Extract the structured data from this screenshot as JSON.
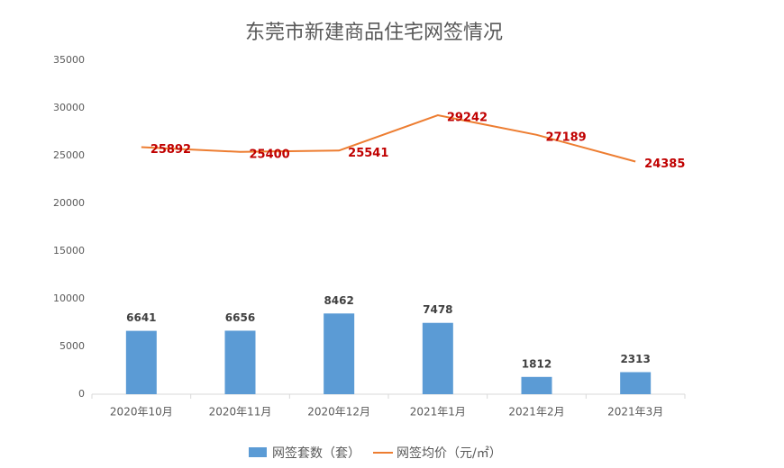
{
  "chart_data": {
    "type": "combo",
    "title": "东莞市新建商品住宅网签情况",
    "categories": [
      "2020年10月",
      "2020年11月",
      "2020年12月",
      "2021年1月",
      "2021年2月",
      "2021年3月"
    ],
    "series": [
      {
        "name": "网签套数（套）",
        "type": "bar",
        "color": "#5b9bd5",
        "values": [
          6641,
          6656,
          8462,
          7478,
          1812,
          2313
        ]
      },
      {
        "name": "网签均价（元/㎡）",
        "type": "line",
        "color": "#ed7d31",
        "values": [
          25892,
          25400,
          25541,
          29242,
          27189,
          24385
        ]
      }
    ],
    "ylim": [
      0,
      35000
    ],
    "yticks": [
      0,
      5000,
      10000,
      15000,
      20000,
      25000,
      30000,
      35000
    ],
    "grid": false
  }
}
